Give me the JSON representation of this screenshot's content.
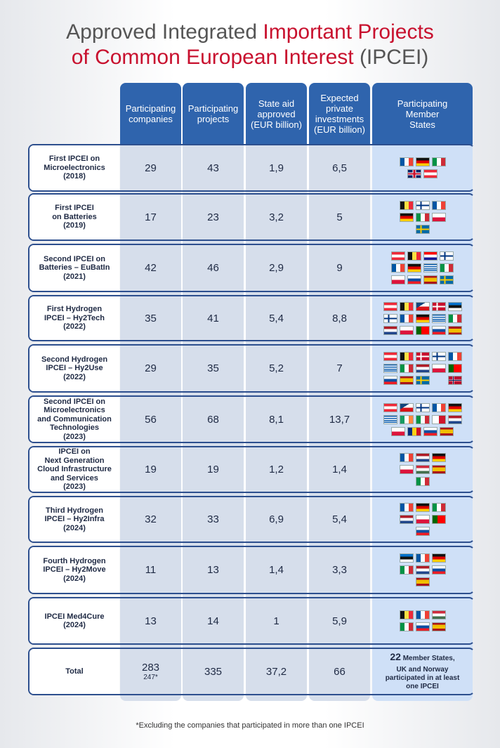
{
  "title": {
    "part1": "Approved Integrated ",
    "part2": "Important Projects",
    "part3": "of Common European Interest",
    "part4": " (IPCEI)"
  },
  "headers": [
    "Participating companies",
    "Participating projects",
    "State aid approved (EUR billion)",
    "Expected private investments (EUR billion)",
    "Participating Member States"
  ],
  "rows": [
    {
      "label": [
        "First IPCEI on",
        "Microelectronics",
        "(2018)"
      ],
      "companies": "29",
      "projects": "43",
      "aid": "1,9",
      "investments": "6,5",
      "flags": [
        [
          "fr",
          "de",
          "it"
        ],
        [
          "uk",
          "at"
        ]
      ]
    },
    {
      "label": [
        "First IPCEI",
        "on Batteries",
        "(2019)"
      ],
      "companies": "17",
      "projects": "23",
      "aid": "3,2",
      "investments": "5",
      "flags": [
        [
          "be",
          "fi",
          "fr"
        ],
        [
          "de",
          "it",
          "pl"
        ],
        [
          "se"
        ]
      ]
    },
    {
      "label": [
        "Second IPCEI on",
        "Batteries – EuBatIn",
        "(2021)"
      ],
      "companies": "42",
      "projects": "46",
      "aid": "2,9",
      "investments": "9",
      "flags": [
        [
          "at",
          "be",
          "hr",
          "fi"
        ],
        [
          "fr",
          "de",
          "gr",
          "it"
        ],
        [
          "pl",
          "sk",
          "es",
          "se"
        ]
      ]
    },
    {
      "label": [
        "First Hydrogen",
        "IPCEI – Hy2Tech",
        "(2022)"
      ],
      "companies": "35",
      "projects": "41",
      "aid": "5,4",
      "investments": "8,8",
      "flags": [
        [
          "at",
          "be",
          "cz",
          "dk",
          "ee"
        ],
        [
          "fi",
          "fr",
          "de",
          "gr",
          "it"
        ],
        [
          "nl",
          "pl",
          "pt",
          "sk",
          "es"
        ]
      ]
    },
    {
      "label": [
        "Second Hydrogen",
        "IPCEI – Hy2Use",
        "(2022)"
      ],
      "companies": "29",
      "projects": "35",
      "aid": "5,2",
      "investments": "7",
      "flags": [
        [
          "at",
          "be",
          "dk",
          "fi",
          "fr"
        ],
        [
          "gr",
          "it",
          "nl",
          "pl",
          "pt"
        ],
        [
          "sk",
          "es",
          "se",
          "",
          "no"
        ]
      ]
    },
    {
      "label": [
        "Second IPCEI on",
        "Microelectronics",
        "and Communication",
        "Technologies",
        "(2023)"
      ],
      "companies": "56",
      "projects": "68",
      "aid": "8,1",
      "investments": "13,7",
      "flags": [
        [
          "at",
          "cz",
          "fi",
          "fr",
          "de"
        ],
        [
          "gr",
          "ie",
          "it",
          "mt",
          "nl"
        ],
        [
          "pl",
          "ro",
          "sk",
          "es"
        ]
      ]
    },
    {
      "label": [
        "IPCEI on",
        "Next Generation",
        "Cloud Infrastructure",
        "and Services",
        "(2023)"
      ],
      "companies": "19",
      "projects": "19",
      "aid": "1,2",
      "investments": "1,4",
      "flags": [
        [
          "fr",
          "nl",
          "de"
        ],
        [
          "pl",
          "hu",
          "es"
        ],
        [
          "it"
        ]
      ]
    },
    {
      "label": [
        "Third Hydrogen",
        "IPCEI – Hy2Infra",
        "(2024)"
      ],
      "companies": "32",
      "projects": "33",
      "aid": "6,9",
      "investments": "5,4",
      "flags": [
        [
          "fr",
          "de",
          "it"
        ],
        [
          "nl",
          "pl",
          "pt"
        ],
        [
          "sk"
        ]
      ]
    },
    {
      "label": [
        "Fourth Hydrogen",
        "IPCEI – Hy2Move",
        "(2024)"
      ],
      "companies": "11",
      "projects": "13",
      "aid": "1,4",
      "investments": "3,3",
      "flags": [
        [
          "ee",
          "fr",
          "de"
        ],
        [
          "it",
          "nl",
          "sk"
        ],
        [
          "es"
        ]
      ]
    },
    {
      "label": [
        "IPCEI Med4Cure",
        "(2024)"
      ],
      "companies": "13",
      "projects": "14",
      "aid": "1",
      "investments": "5,9",
      "flags": [
        [
          "be",
          "fr",
          "hu"
        ],
        [
          "it",
          "sk",
          "es"
        ]
      ]
    }
  ],
  "total": {
    "label": "Total",
    "companies": "283",
    "companies_note": "247*",
    "projects": "335",
    "aid": "37,2",
    "investments": "66",
    "member_count": "22",
    "member_text1": " Member States,",
    "member_text2": "UK and Norway participated in at least one IPCEI"
  },
  "footnote": "*Excluding the companies that participated in more than one IPCEI"
}
